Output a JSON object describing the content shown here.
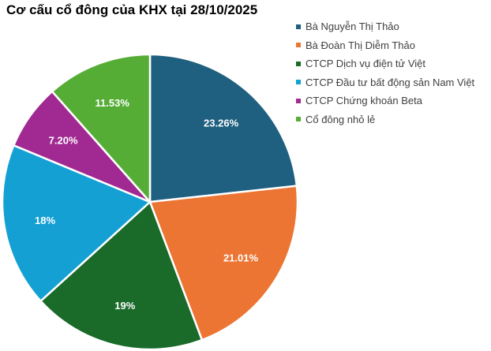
{
  "chart_data": {
    "type": "pie",
    "title": "Cơ cấu cổ đông của KHX tại 28/10/2025",
    "legend_position": "right",
    "slices": [
      {
        "name": "Bà Nguyễn Thị Thảo",
        "value": 23.26,
        "label": "23.26%",
        "color": "#1f5f7f"
      },
      {
        "name": "Bà Đoàn Thị Diễm Thảo",
        "value": 21.01,
        "label": "21.01%",
        "color": "#ec7533"
      },
      {
        "name": "CTCP Dịch vụ điện tử Việt",
        "value": 19,
        "label": "19%",
        "color": "#1a6a2a"
      },
      {
        "name": "CTCP Đầu tư bất động sản Nam Việt",
        "value": 18,
        "label": "18%",
        "color": "#15a0d4"
      },
      {
        "name": "CTCP Chứng khoán Beta",
        "value": 7.2,
        "label": "7.20%",
        "color": "#a12a92"
      },
      {
        "name": "Cổ đông nhỏ lẻ",
        "value": 11.53,
        "label": "11.53%",
        "color": "#55ad36"
      }
    ]
  }
}
